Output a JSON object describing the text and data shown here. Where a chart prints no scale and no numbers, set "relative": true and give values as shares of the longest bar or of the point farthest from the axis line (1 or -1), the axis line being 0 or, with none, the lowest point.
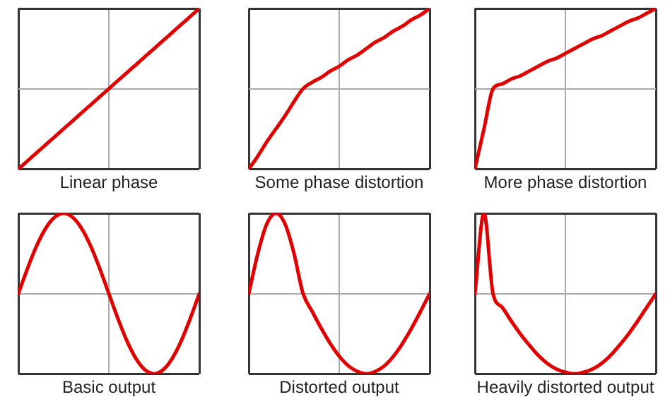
{
  "chart_data": [
    {
      "type": "line",
      "xlabel": "Linear phase",
      "relative": true,
      "grid": true,
      "tick_labels": false,
      "marker": "none",
      "line_style": "solid",
      "categories": [
        null,
        null,
        null,
        null,
        null,
        null,
        null,
        null,
        null,
        null,
        null,
        null,
        null,
        null,
        null,
        null,
        null,
        null,
        null,
        null,
        null
      ],
      "series": [
        {
          "color": "#e00000",
          "values": [
            0,
            0.05,
            0.1,
            0.15,
            0.2,
            0.25,
            0.3,
            0.35,
            0.4,
            0.45,
            0.5,
            0.55,
            0.6,
            0.65,
            0.7,
            0.75,
            0.8,
            0.85,
            0.9,
            0.95,
            1
          ]
        }
      ]
    },
    {
      "type": "line",
      "xlabel": "Some phase distortion",
      "relative": true,
      "grid": true,
      "tick_labels": false,
      "marker": "none",
      "line_style": "solid",
      "categories": [
        null,
        null,
        null,
        null,
        null,
        null,
        null,
        null,
        null,
        null,
        null,
        null,
        null,
        null,
        null,
        null,
        null,
        null,
        null,
        null,
        null
      ],
      "series": [
        {
          "color": "#e00000",
          "values": [
            0,
            0.08,
            0.17,
            0.25,
            0.33,
            0.42,
            0.5,
            0.54,
            0.57,
            0.61,
            0.64,
            0.68,
            0.71,
            0.75,
            0.79,
            0.82,
            0.86,
            0.89,
            0.93,
            0.96,
            1
          ]
        }
      ]
    },
    {
      "type": "line",
      "xlabel": "More phase distortion",
      "relative": true,
      "grid": true,
      "tick_labels": false,
      "marker": "none",
      "line_style": "solid",
      "categories": [
        null,
        null,
        null,
        null,
        null,
        null,
        null,
        null,
        null,
        null,
        null,
        null,
        null,
        null,
        null,
        null,
        null,
        null,
        null,
        null,
        null
      ],
      "series": [
        {
          "color": "#e00000",
          "values": [
            0,
            0.25,
            0.5,
            0.53,
            0.56,
            0.58,
            0.61,
            0.64,
            0.67,
            0.69,
            0.72,
            0.75,
            0.78,
            0.81,
            0.83,
            0.86,
            0.89,
            0.92,
            0.94,
            0.97,
            1
          ]
        }
      ]
    },
    {
      "type": "line",
      "xlabel": "Basic output",
      "relative": true,
      "grid": true,
      "tick_labels": false,
      "marker": "none",
      "line_style": "solid",
      "categories": [
        null,
        null,
        null,
        null,
        null,
        null,
        null,
        null,
        null,
        null,
        null,
        null,
        null,
        null,
        null,
        null,
        null,
        null,
        null,
        null,
        null
      ],
      "series": [
        {
          "color": "#e00000",
          "values": [
            0,
            0.31,
            0.59,
            0.81,
            0.95,
            1,
            0.95,
            0.81,
            0.59,
            0.31,
            0,
            -0.31,
            -0.59,
            -0.81,
            -0.95,
            -1,
            -0.95,
            -0.81,
            -0.59,
            -0.31,
            0
          ]
        }
      ]
    },
    {
      "type": "line",
      "xlabel": "Distorted output",
      "relative": true,
      "grid": true,
      "tick_labels": false,
      "marker": "none",
      "line_style": "solid",
      "categories": [
        null,
        null,
        null,
        null,
        null,
        null,
        null,
        null,
        null,
        null,
        null,
        null,
        null,
        null,
        null,
        null,
        null,
        null,
        null,
        null,
        null
      ],
      "series": [
        {
          "color": "#e00000",
          "values": [
            0,
            0.5,
            0.87,
            1,
            0.87,
            0.5,
            0,
            -0.22,
            -0.43,
            -0.62,
            -0.78,
            -0.9,
            -0.97,
            -1,
            -0.97,
            -0.9,
            -0.78,
            -0.62,
            -0.43,
            -0.22,
            0
          ]
        }
      ]
    },
    {
      "type": "line",
      "xlabel": "Heavily distorted output",
      "relative": true,
      "grid": true,
      "tick_labels": false,
      "marker": "none",
      "line_style": "solid",
      "categories": [
        null,
        null,
        null,
        null,
        null,
        null,
        null,
        null,
        null,
        null,
        null,
        null,
        null,
        null,
        null,
        null,
        null,
        null,
        null,
        null,
        null
      ],
      "series": [
        {
          "color": "#e00000",
          "values": [
            0,
            1,
            0,
            -0.17,
            -0.34,
            -0.5,
            -0.64,
            -0.77,
            -0.87,
            -0.94,
            -0.98,
            -1,
            -0.98,
            -0.94,
            -0.87,
            -0.77,
            -0.64,
            -0.5,
            -0.34,
            -0.17,
            0
          ]
        }
      ]
    }
  ]
}
